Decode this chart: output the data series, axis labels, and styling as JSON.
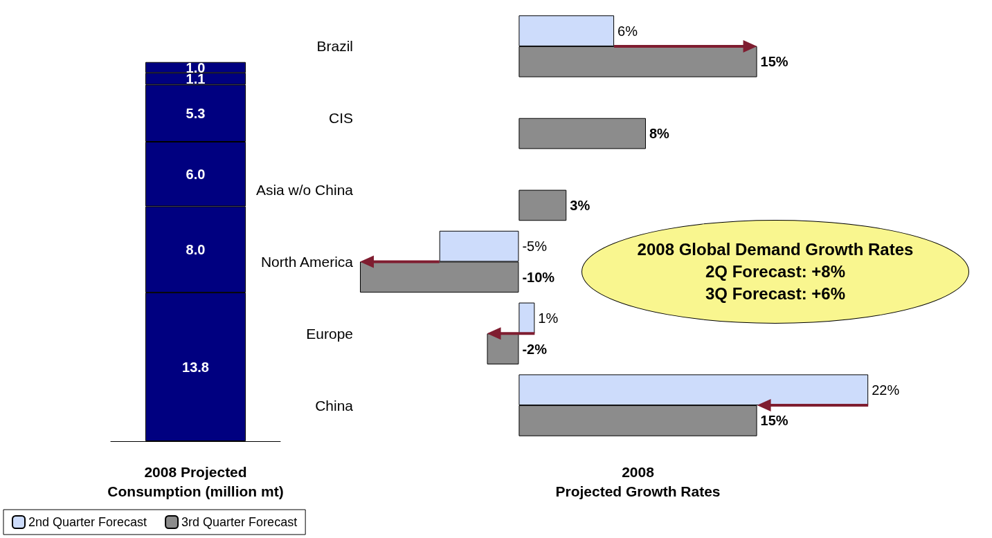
{
  "chart_data": [
    {
      "type": "bar",
      "stacked": true,
      "xlabel": "2008 Projected\nConsumption (million mt)",
      "categories": [
        null
      ],
      "series": [
        {
          "color": "#000080",
          "values": [
            13.8
          ],
          "value_labels": [
            "13.8"
          ]
        },
        {
          "color": "#000080",
          "values": [
            8.0
          ],
          "value_labels": [
            "8.0"
          ]
        },
        {
          "color": "#000080",
          "values": [
            6.0
          ],
          "value_labels": [
            "6.0"
          ]
        },
        {
          "color": "#000080",
          "values": [
            5.3
          ],
          "value_labels": [
            "5.3"
          ]
        },
        {
          "color": "#000080",
          "values": [
            1.1
          ],
          "value_labels": [
            "1.1"
          ]
        },
        {
          "color": "#000080",
          "values": [
            1.0
          ],
          "value_labels": [
            "1.0"
          ]
        }
      ],
      "legend": false
    },
    {
      "type": "bar",
      "orientation": "horizontal",
      "xlabel": "2008\nProjected Growth Rates",
      "categories": [
        "Brazil",
        "CIS",
        "Asia w/o China",
        "North America",
        "Europe",
        "China"
      ],
      "series": [
        {
          "name": "2nd Quarter Forecast",
          "color": "#cddcfb",
          "values": [
            6,
            null,
            null,
            -5,
            1,
            22
          ],
          "value_labels": [
            "6%",
            null,
            null,
            "-5%",
            "1%",
            "22%"
          ]
        },
        {
          "name": "3rd Quarter Forecast",
          "color": "#8c8c8c",
          "values": [
            15,
            8,
            3,
            -10,
            -2,
            15
          ],
          "value_labels": [
            "15%",
            "8%",
            "3%",
            "-10%",
            "-2%",
            "15%"
          ]
        }
      ],
      "legend": "bottom left",
      "annotations": [
        "2008 Global Demand Growth Rates",
        "2Q Forecast: +8%",
        "3Q Forecast: +6%"
      ]
    }
  ]
}
